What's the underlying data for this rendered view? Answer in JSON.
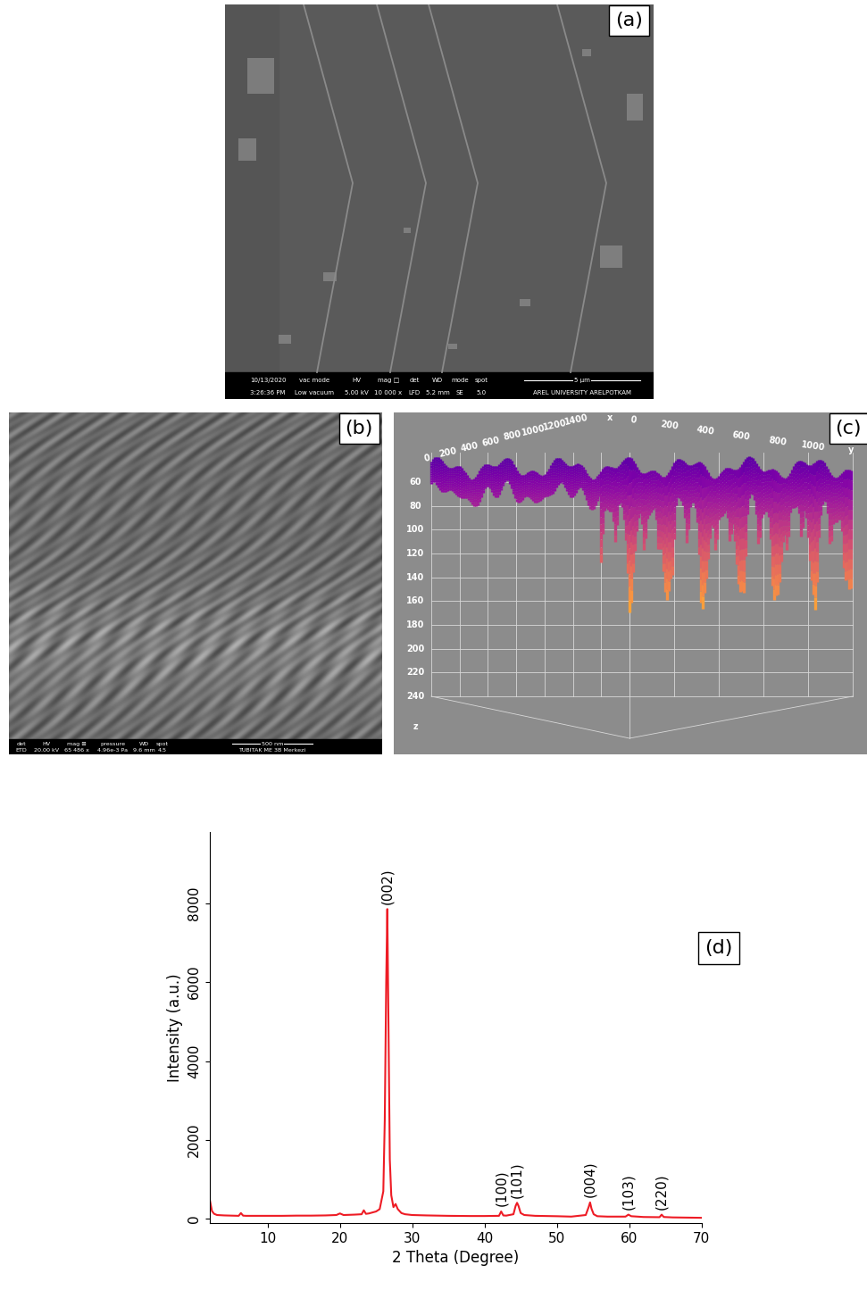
{
  "panels": {
    "a": {
      "label": "(a)",
      "info_headers": [
        "10/13/2020",
        "vac mode",
        "HV",
        "mag □",
        "det",
        "WD",
        "mode",
        "spot"
      ],
      "info_values": [
        "3:26:36 PM",
        "Low vacuum",
        "5.00 kV",
        "10 000 x",
        "LFD",
        "5.2 mm",
        "SE",
        "5.0"
      ],
      "scale_bar": "5 μm",
      "institution": "AREL UNIVERSITY ARELPOTKAM"
    },
    "b": {
      "label": "(b)",
      "info_headers": [
        "det",
        "HV",
        "mag ⊞",
        "pressure",
        "WD",
        "spot"
      ],
      "info_values": [
        "ETD",
        "20.00 kV",
        "65 486 x",
        "4.96e-3 Pa",
        "9.6 mm",
        "4.5"
      ],
      "scale_bar": "500 nm",
      "institution": "TUBITAK ME 3B Merkezi"
    },
    "c": {
      "label": "(c)",
      "x_axis": {
        "name": "x",
        "ticks": [
          0,
          200,
          400,
          600,
          800,
          1000,
          1200,
          1400
        ]
      },
      "y_axis": {
        "name": "y",
        "ticks": [
          0,
          200,
          400,
          600,
          800,
          1000
        ]
      },
      "z_axis": {
        "name": "z",
        "ticks": [
          60,
          80,
          100,
          120,
          140,
          160,
          180,
          200,
          220,
          240
        ]
      }
    }
  },
  "chart_data": {
    "type": "line",
    "panel_label": "(d)",
    "x_label": "2 Theta (Degree)",
    "y_label": "Intensity (a.u.)",
    "color": "#ee1c25",
    "x": [
      2.0,
      2.3,
      2.6,
      3,
      4,
      5,
      6,
      6.3,
      6.6,
      7,
      8,
      10,
      12,
      14,
      16,
      18,
      19.5,
      20,
      20.5,
      22,
      23,
      23.3,
      23.6,
      24,
      25,
      25.5,
      26.0,
      26.2,
      26.4,
      26.55,
      26.7,
      26.9,
      27.1,
      27.4,
      27.7,
      28.0,
      28.5,
      29,
      30,
      32,
      35,
      38,
      40,
      42.0,
      42.3,
      42.6,
      43,
      44.0,
      44.3,
      44.5,
      44.7,
      45.0,
      45.5,
      47,
      50,
      52,
      54.0,
      54.4,
      54.6,
      54.8,
      55.1,
      55.6,
      57,
      59.5,
      59.9,
      60.3,
      62,
      64.2,
      64.5,
      64.8,
      66,
      68,
      70
    ],
    "values": [
      480,
      200,
      130,
      100,
      90,
      85,
      80,
      150,
      85,
      80,
      80,
      80,
      80,
      85,
      85,
      90,
      100,
      140,
      100,
      110,
      120,
      220,
      130,
      140,
      190,
      250,
      700,
      2500,
      6000,
      7850,
      5200,
      1500,
      600,
      300,
      380,
      250,
      150,
      120,
      100,
      90,
      80,
      75,
      75,
      80,
      190,
      90,
      85,
      120,
      330,
      410,
      330,
      150,
      100,
      80,
      70,
      60,
      100,
      300,
      420,
      260,
      120,
      70,
      60,
      60,
      110,
      70,
      50,
      45,
      110,
      50,
      40,
      35,
      30
    ],
    "xlim": [
      2,
      70
    ],
    "ylim": [
      -100,
      9800
    ],
    "xticks": [
      10,
      20,
      30,
      40,
      50,
      60,
      70
    ],
    "yticks": [
      0,
      2000,
      4000,
      6000,
      8000
    ],
    "annotations": [
      {
        "text": "(002)",
        "x": 26.55,
        "y": 7850
      },
      {
        "text": "(100)",
        "x": 42.3,
        "y": 190
      },
      {
        "text": "(101)",
        "x": 44.5,
        "y": 410
      },
      {
        "text": "(004)",
        "x": 54.6,
        "y": 420
      },
      {
        "text": "(103)",
        "x": 59.9,
        "y": 110
      },
      {
        "text": "(220)",
        "x": 64.5,
        "y": 110
      }
    ]
  }
}
